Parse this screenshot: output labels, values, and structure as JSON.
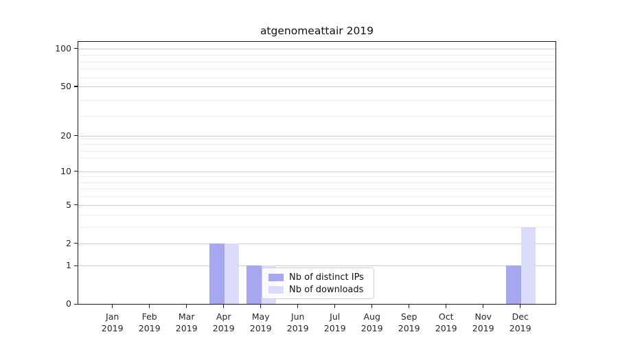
{
  "chart_data": {
    "type": "bar",
    "title": "atgenomeattair 2019",
    "categories": [
      "Jan",
      "Feb",
      "Mar",
      "Apr",
      "May",
      "Jun",
      "Jul",
      "Aug",
      "Sep",
      "Oct",
      "Nov",
      "Dec"
    ],
    "category_year": "2019",
    "series": [
      {
        "name": "Nb of distinct IPs",
        "color": "#a7a7ef",
        "values": [
          0,
          0,
          0,
          2,
          1,
          0,
          0,
          0,
          0,
          0,
          0,
          1
        ]
      },
      {
        "name": "Nb of downloads",
        "color": "#dadaf9",
        "values": [
          0,
          0,
          0,
          2,
          1,
          0,
          0,
          0,
          0,
          0,
          0,
          3
        ]
      }
    ],
    "yscale": "log1p",
    "ylim": [
      0,
      114.4
    ],
    "yticks": [
      {
        "value": 100,
        "label": "100"
      },
      {
        "value": 50,
        "label": "50"
      },
      {
        "value": 20,
        "label": "20"
      },
      {
        "value": 10,
        "label": "10"
      },
      {
        "value": 5,
        "label": "5"
      },
      {
        "value": 2,
        "label": "2"
      },
      {
        "value": 1,
        "label": "1"
      },
      {
        "value": 0,
        "label": "0"
      }
    ],
    "grid": true,
    "legend": {
      "position": "lower center",
      "entries": [
        "Nb of distinct IPs",
        "Nb of downloads"
      ]
    }
  }
}
